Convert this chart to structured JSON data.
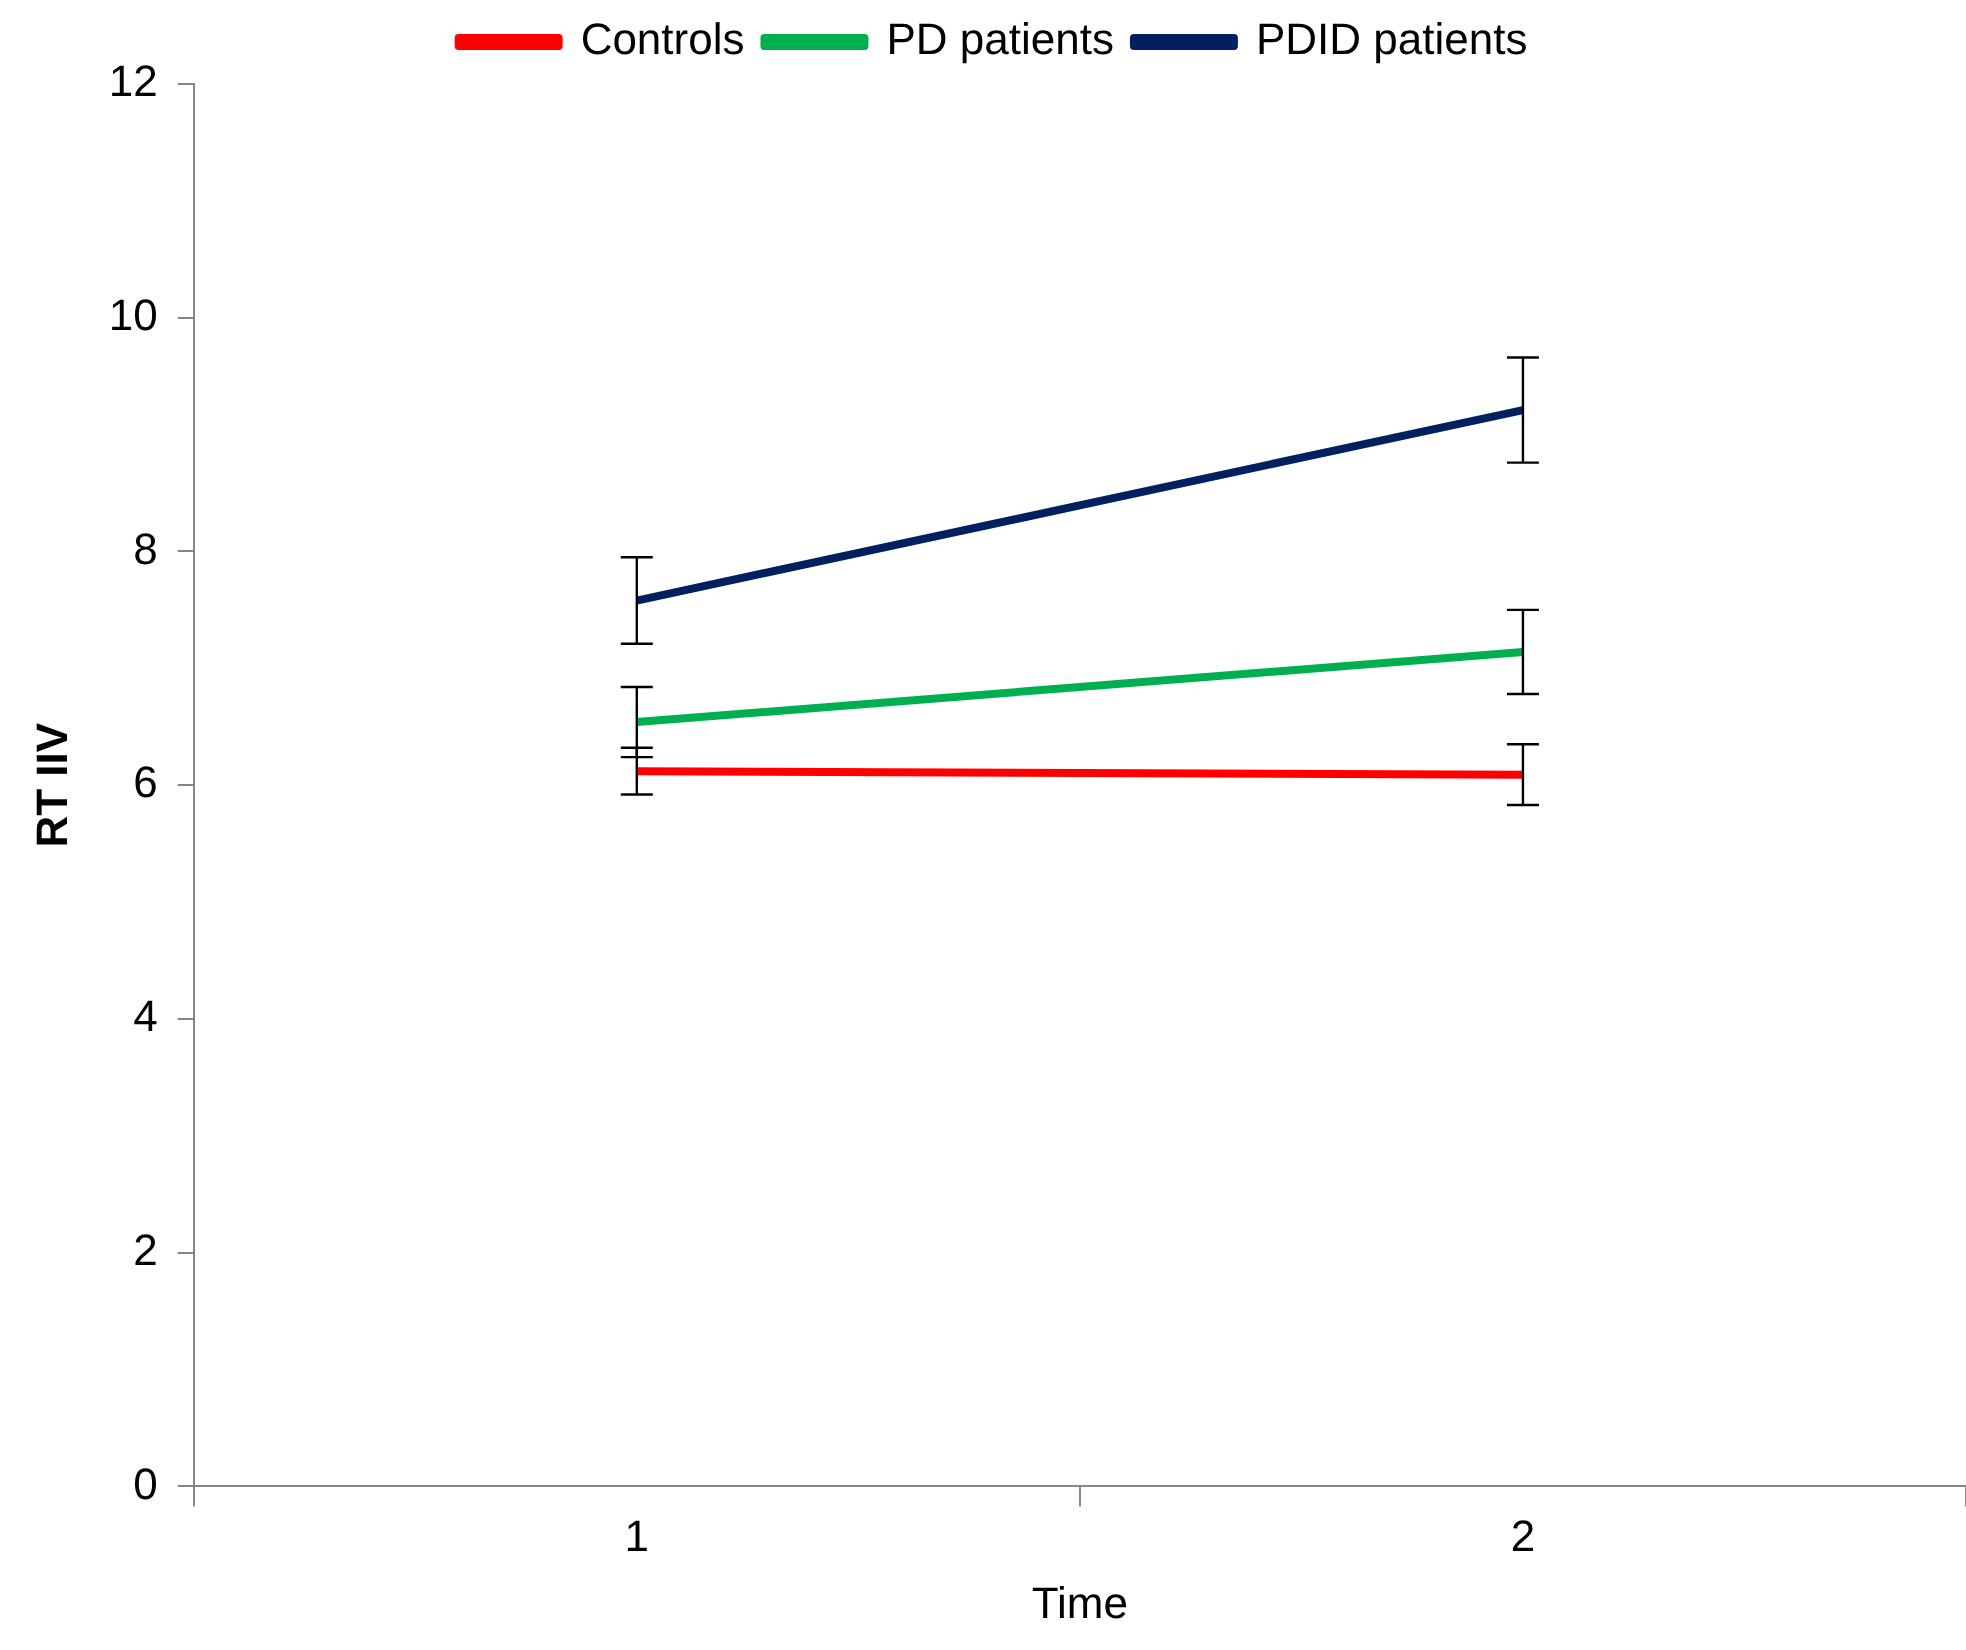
{
  "chart_data": {
    "type": "line",
    "xlabel": "Time",
    "ylabel": "RT IIV",
    "categories": [
      "1",
      "2"
    ],
    "series": [
      {
        "name": "Controls",
        "color": "#ff0000",
        "values": [
          6.12,
          6.09
        ],
        "errors": [
          0.2,
          0.26
        ]
      },
      {
        "name": "PD patients",
        "color": "#00b050",
        "values": [
          6.54,
          7.14
        ],
        "errors": [
          0.3,
          0.36
        ]
      },
      {
        "name": "PDID patients",
        "color": "#002060",
        "values": [
          7.58,
          9.21
        ],
        "errors": [
          0.37,
          0.45
        ]
      }
    ],
    "ylim": [
      0,
      12
    ],
    "yticks": [
      0,
      2,
      4,
      6,
      8,
      10,
      12
    ],
    "grid": false,
    "legend": "top",
    "marker": "none",
    "line_style": "solid"
  }
}
